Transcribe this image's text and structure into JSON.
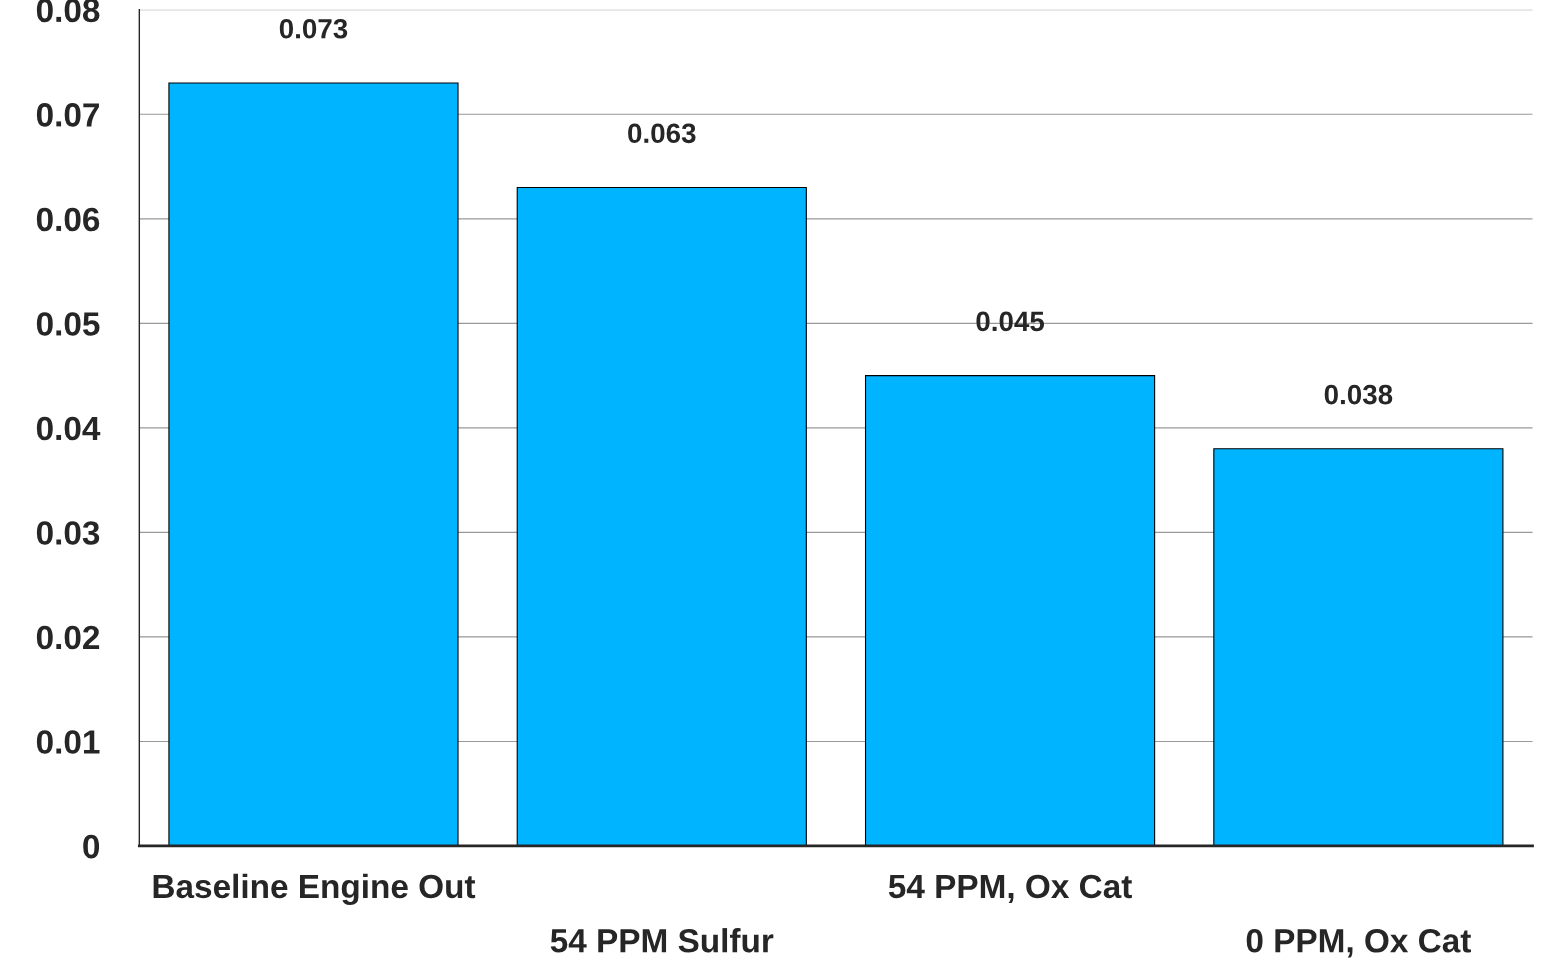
{
  "chart_data": {
    "type": "bar",
    "categories": [
      "Baseline Engine Out",
      "54 PPM Sulfur",
      "54 PPM, Ox Cat",
      "0 PPM, Ox Cat"
    ],
    "values": [
      0.073,
      0.063,
      0.045,
      0.038
    ],
    "color": "#00b4ff",
    "ylim": [
      0,
      0.08
    ],
    "yticks": [
      {
        "value": 0,
        "label": "0"
      },
      0.01,
      0.02,
      0.03,
      0.04,
      0.05,
      0.06,
      0.07,
      0.08
    ],
    "grid": "y",
    "data_labels": true
  }
}
